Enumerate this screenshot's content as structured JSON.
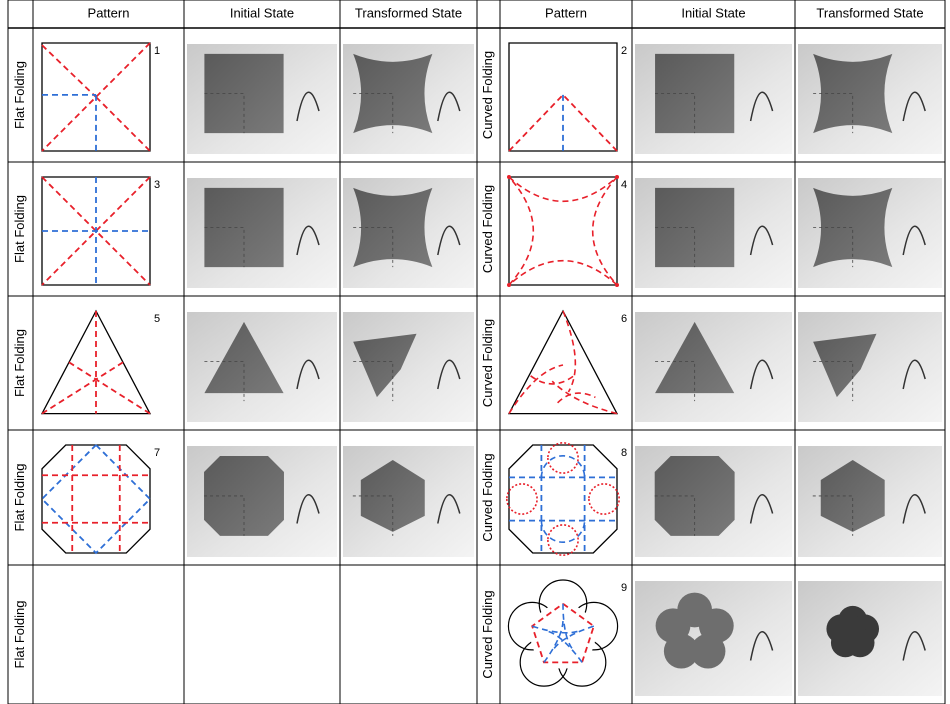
{
  "header": [
    "Pattern",
    "Initial State",
    "Transformed State",
    "Pattern",
    "Initial State",
    "Transformed State"
  ],
  "rows": [
    {
      "left": {
        "label": "Flat Folding",
        "number": 1
      },
      "right": {
        "label": "Curved Folding",
        "number": 2
      }
    },
    {
      "left": {
        "label": "Flat Folding",
        "number": 3
      },
      "right": {
        "label": "Curved Folding",
        "number": 4
      }
    },
    {
      "left": {
        "label": "Flat Folding",
        "number": 5
      },
      "right": {
        "label": "Curved Folding",
        "number": 6
      }
    },
    {
      "left": {
        "label": "Flat Folding",
        "number": 7
      },
      "right": {
        "label": "Curved Folding",
        "number": 8
      }
    },
    {
      "left": {
        "label": "Flat Folding"
      },
      "right": {
        "label": "Curved Folding",
        "number": 9
      }
    }
  ]
}
